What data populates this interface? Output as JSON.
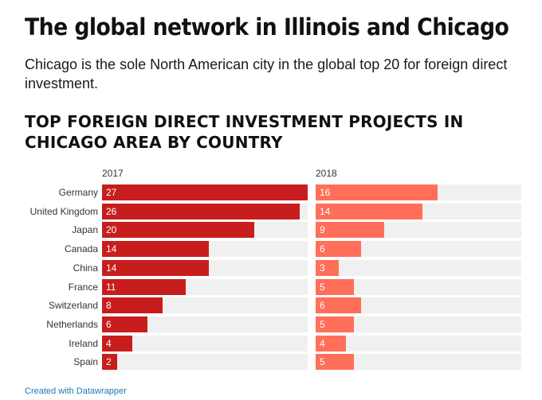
{
  "header": {
    "title": "The global network in Illinois and Chicago",
    "description": "Chicago is the sole North American city in the global top 20 for foreign direct investment."
  },
  "footer": {
    "credit": "Created with Datawrapper"
  },
  "chart_data": {
    "type": "bar",
    "title": "TOP FOREIGN DIRECT INVESTMENT PROJECTS IN CHICAGO AREA BY COUNTRY",
    "categories": [
      "Germany",
      "United Kingdom",
      "Japan",
      "Canada",
      "China",
      "France",
      "Switzerland",
      "Netherlands",
      "Ireland",
      "Spain"
    ],
    "series": [
      {
        "name": "2017",
        "values": [
          27,
          26,
          20,
          14,
          14,
          11,
          8,
          6,
          4,
          2
        ],
        "color": "#c71e1d"
      },
      {
        "name": "2018",
        "values": [
          16,
          14,
          9,
          6,
          3,
          5,
          6,
          5,
          4,
          5
        ],
        "color": "#ff6f59"
      }
    ],
    "xlim": [
      0,
      27
    ],
    "grid": false,
    "legend": "none",
    "track_color": "#f0f0f0"
  }
}
